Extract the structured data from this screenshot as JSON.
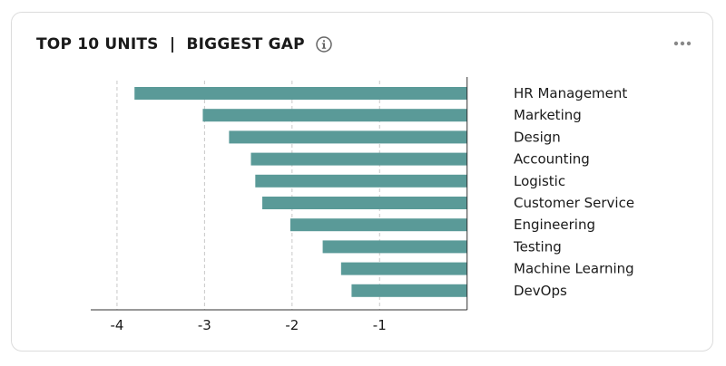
{
  "header": {
    "title": "TOP 10 UNITS  |  BIGGEST GAP",
    "info_icon": "info-icon",
    "more_icon": "more-dots-icon"
  },
  "colors": {
    "bar": "#5a9a98",
    "grid": "#c8c8c8",
    "axis": "#333333"
  },
  "chart_data": {
    "type": "bar",
    "orientation": "horizontal",
    "categories": [
      "HR Management",
      "Marketing",
      "Design",
      "Accounting",
      "Logistic",
      "Customer Service",
      "Engineering",
      "Testing",
      "Machine Learning",
      "DevOps"
    ],
    "values": [
      -3.8,
      -3.02,
      -2.72,
      -2.47,
      -2.42,
      -2.34,
      -2.02,
      -1.65,
      -1.44,
      -1.32
    ],
    "xlim": [
      -4.3,
      0.2
    ],
    "xticks": [
      -4,
      -3,
      -2,
      -1
    ],
    "xtick_labels": [
      "-4",
      "-3",
      "-2",
      "-1"
    ],
    "grid": "vertical-dashed",
    "category_labels_position": "right"
  }
}
